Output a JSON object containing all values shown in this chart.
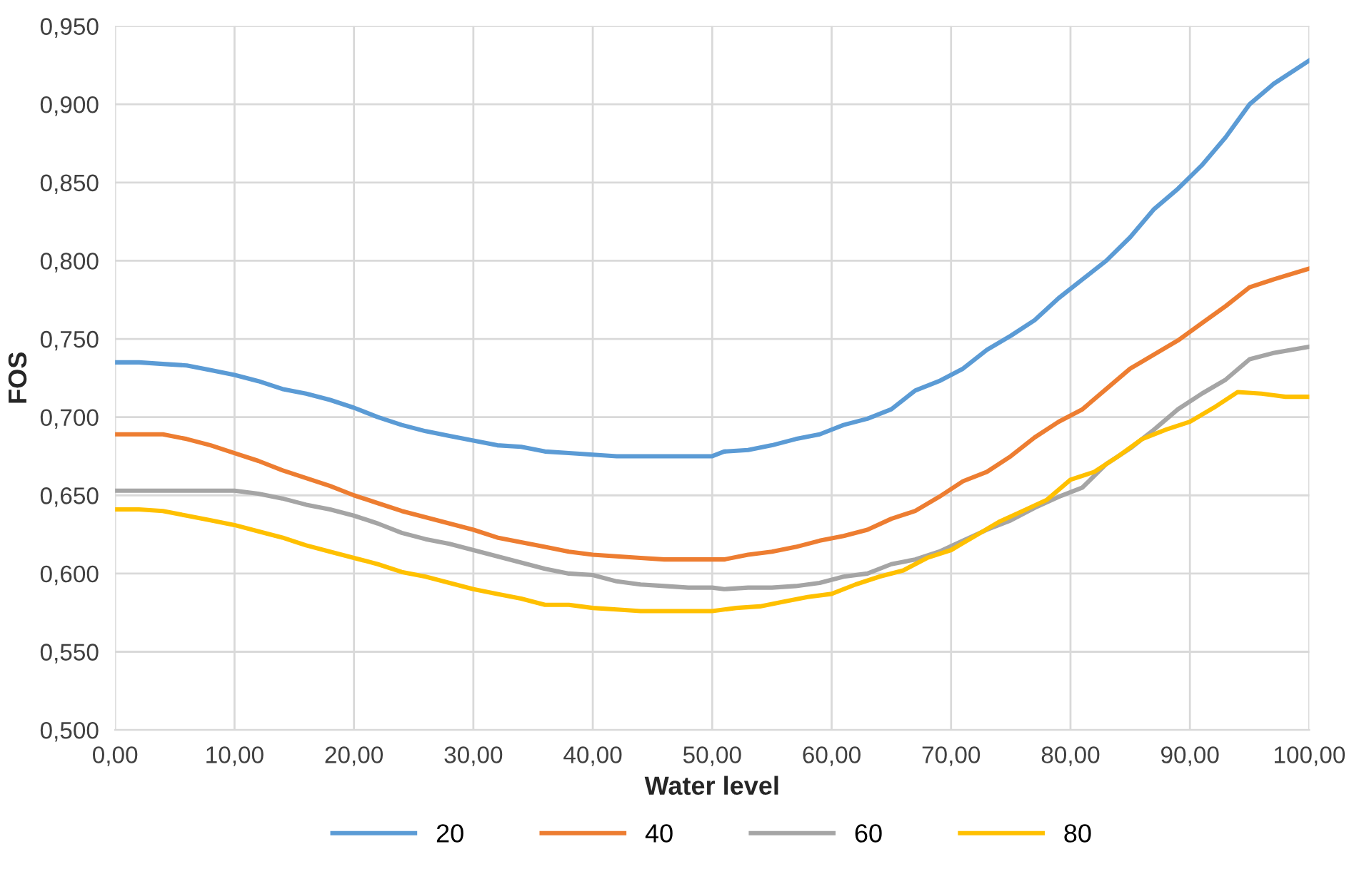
{
  "chart_data": {
    "type": "line",
    "xlabel": "Water level",
    "ylabel": "FOS",
    "xlim": [
      0,
      100
    ],
    "ylim": [
      0.5,
      0.95
    ],
    "xticks": [
      {
        "value": 0,
        "label": "0,00"
      },
      {
        "value": 10,
        "label": "10,00"
      },
      {
        "value": 20,
        "label": "20,00"
      },
      {
        "value": 30,
        "label": "30,00"
      },
      {
        "value": 40,
        "label": "40,00"
      },
      {
        "value": 50,
        "label": "50,00"
      },
      {
        "value": 60,
        "label": "60,00"
      },
      {
        "value": 70,
        "label": "70,00"
      },
      {
        "value": 80,
        "label": "80,00"
      },
      {
        "value": 90,
        "label": "90,00"
      },
      {
        "value": 100,
        "label": "100,00"
      }
    ],
    "yticks": [
      {
        "value": 0.5,
        "label": "0,500"
      },
      {
        "value": 0.55,
        "label": "0,550"
      },
      {
        "value": 0.6,
        "label": "0,600"
      },
      {
        "value": 0.65,
        "label": "0,650"
      },
      {
        "value": 0.7,
        "label": "0,700"
      },
      {
        "value": 0.75,
        "label": "0,750"
      },
      {
        "value": 0.8,
        "label": "0,800"
      },
      {
        "value": 0.85,
        "label": "0,850"
      },
      {
        "value": 0.9,
        "label": "0,900"
      },
      {
        "value": 0.95,
        "label": "0,950"
      }
    ],
    "grid": true,
    "legend": "bottom",
    "marker": "none",
    "line_style": "solid",
    "series": [
      {
        "name": "20",
        "color": "#5b9bd5",
        "x": [
          0,
          2,
          4,
          6,
          8,
          10,
          12,
          14,
          16,
          18,
          20,
          22,
          24,
          26,
          28,
          30,
          32,
          34,
          36,
          38,
          40,
          42,
          44,
          46,
          48,
          50,
          51,
          53,
          55,
          57,
          59,
          61,
          63,
          65,
          67,
          69,
          71,
          73,
          75,
          77,
          79,
          81,
          83,
          85,
          87,
          89,
          91,
          93,
          95,
          97,
          100
        ],
        "values": [
          0.735,
          0.735,
          0.734,
          0.733,
          0.73,
          0.727,
          0.723,
          0.718,
          0.715,
          0.711,
          0.706,
          0.7,
          0.695,
          0.691,
          0.688,
          0.685,
          0.682,
          0.681,
          0.678,
          0.677,
          0.676,
          0.675,
          0.675,
          0.675,
          0.675,
          0.675,
          0.678,
          0.679,
          0.682,
          0.686,
          0.689,
          0.695,
          0.699,
          0.705,
          0.717,
          0.723,
          0.731,
          0.743,
          0.752,
          0.762,
          0.776,
          0.788,
          0.8,
          0.815,
          0.833,
          0.846,
          0.861,
          0.879,
          0.9,
          0.913,
          0.928
        ]
      },
      {
        "name": "40",
        "color": "#ed7d31",
        "x": [
          0,
          2,
          4,
          6,
          8,
          10,
          12,
          14,
          16,
          18,
          20,
          22,
          24,
          26,
          28,
          30,
          32,
          34,
          36,
          38,
          40,
          42,
          44,
          46,
          48,
          50,
          51,
          53,
          55,
          57,
          59,
          61,
          63,
          65,
          67,
          69,
          71,
          73,
          75,
          77,
          79,
          81,
          83,
          85,
          87,
          89,
          91,
          93,
          95,
          97,
          100
        ],
        "values": [
          0.689,
          0.689,
          0.689,
          0.686,
          0.682,
          0.677,
          0.672,
          0.666,
          0.661,
          0.656,
          0.65,
          0.645,
          0.64,
          0.636,
          0.632,
          0.628,
          0.623,
          0.62,
          0.617,
          0.614,
          0.612,
          0.611,
          0.61,
          0.609,
          0.609,
          0.609,
          0.609,
          0.612,
          0.614,
          0.617,
          0.621,
          0.624,
          0.628,
          0.635,
          0.64,
          0.649,
          0.659,
          0.665,
          0.675,
          0.687,
          0.697,
          0.705,
          0.718,
          0.731,
          0.74,
          0.749,
          0.76,
          0.771,
          0.783,
          0.788,
          0.795
        ]
      },
      {
        "name": "60",
        "color": "#a5a5a5",
        "x": [
          0,
          10,
          12,
          14,
          16,
          18,
          20,
          22,
          24,
          26,
          28,
          30,
          32,
          34,
          36,
          38,
          40,
          42,
          44,
          46,
          48,
          50,
          51,
          53,
          55,
          57,
          59,
          61,
          63,
          65,
          67,
          69,
          71,
          73,
          75,
          77,
          79,
          81,
          83,
          85,
          87,
          89,
          91,
          93,
          95,
          97,
          100
        ],
        "values": [
          0.653,
          0.653,
          0.651,
          0.648,
          0.644,
          0.641,
          0.637,
          0.632,
          0.626,
          0.622,
          0.619,
          0.615,
          0.611,
          0.607,
          0.603,
          0.6,
          0.599,
          0.595,
          0.593,
          0.592,
          0.591,
          0.591,
          0.59,
          0.591,
          0.591,
          0.592,
          0.594,
          0.598,
          0.6,
          0.606,
          0.609,
          0.614,
          0.621,
          0.628,
          0.634,
          0.642,
          0.649,
          0.655,
          0.67,
          0.68,
          0.692,
          0.705,
          0.715,
          0.724,
          0.737,
          0.741,
          0.745
        ]
      },
      {
        "name": "80",
        "color": "#ffc000",
        "x": [
          0,
          2,
          4,
          6,
          8,
          10,
          12,
          14,
          16,
          18,
          20,
          22,
          24,
          26,
          28,
          30,
          32,
          34,
          36,
          38,
          40,
          42,
          44,
          46,
          48,
          50,
          52,
          54,
          56,
          58,
          60,
          62,
          64,
          66,
          68,
          70,
          72,
          74,
          76,
          78,
          80,
          82,
          84,
          86,
          88,
          90,
          92,
          94,
          96,
          98,
          100
        ],
        "values": [
          0.641,
          0.641,
          0.64,
          0.637,
          0.634,
          0.631,
          0.627,
          0.623,
          0.618,
          0.614,
          0.61,
          0.606,
          0.601,
          0.598,
          0.594,
          0.59,
          0.587,
          0.584,
          0.58,
          0.58,
          0.578,
          0.577,
          0.576,
          0.576,
          0.576,
          0.576,
          0.578,
          0.579,
          0.582,
          0.585,
          0.587,
          0.593,
          0.598,
          0.602,
          0.61,
          0.615,
          0.624,
          0.633,
          0.64,
          0.647,
          0.66,
          0.665,
          0.675,
          0.686,
          0.692,
          0.697,
          0.706,
          0.716,
          0.715,
          0.713,
          0.713
        ]
      }
    ]
  }
}
